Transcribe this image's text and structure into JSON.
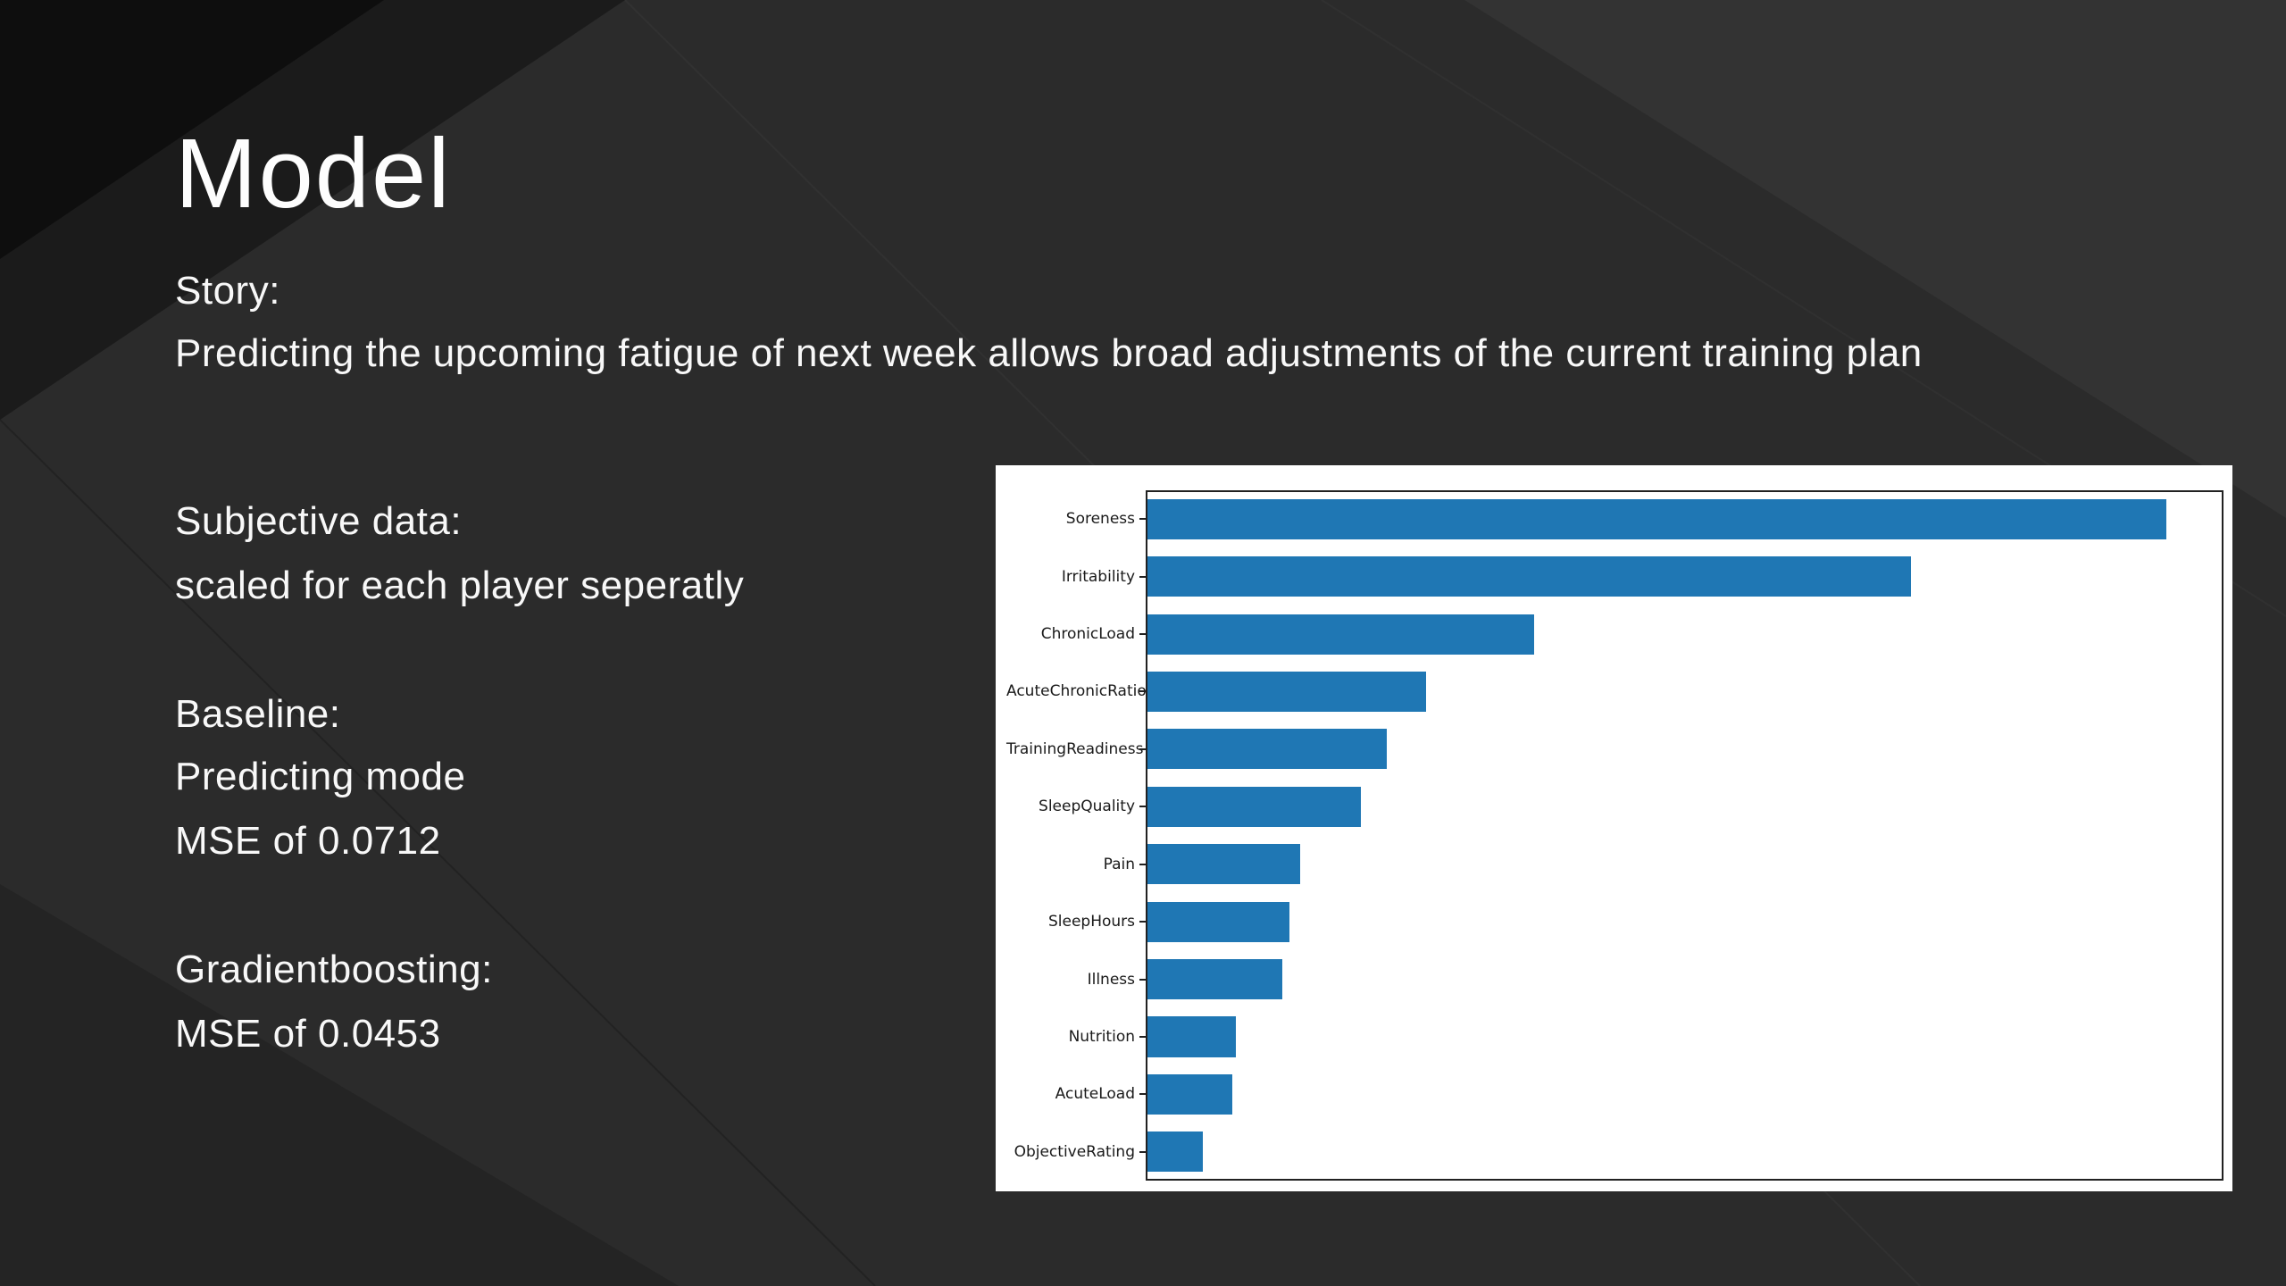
{
  "slide": {
    "title": "Model",
    "story_label": "Story:",
    "story_text": "Predicting the upcoming fatigue of next week allows broad adjustments of the current training plan",
    "subjective_label": "Subjective data:",
    "subjective_text": "scaled for each player seperatly",
    "baseline_label": "Baseline:",
    "baseline_line1": "Predicting mode",
    "baseline_line2": "MSE of 0.0712",
    "gradientboosting_label": "Gradientboosting:",
    "gradientboosting_line1": "MSE of 0.0453"
  },
  "colors": {
    "slide_background": "#2b2b2b",
    "facet_dark": "#161616",
    "facet_darker": "#0d0d0d",
    "facet_light": "#343434",
    "text": "#f8f8f8",
    "chart_background": "#ffffff",
    "bar_color": "#1f77b4",
    "axes_color": "#212121"
  },
  "chart_data": {
    "type": "bar",
    "orientation": "horizontal",
    "title": "",
    "xlabel": "",
    "ylabel": "",
    "legend": null,
    "grid": false,
    "xlim": [
      0,
      0.3
    ],
    "categories": [
      "Soreness",
      "Irritability",
      "ChronicLoad",
      "AcuteChronicRatio",
      "TrainingReadiness",
      "SleepQuality",
      "Pain",
      "SleepHours",
      "Illness",
      "Nutrition",
      "AcuteLoad",
      "ObjectiveRating"
    ],
    "values": [
      0.284,
      0.213,
      0.108,
      0.078,
      0.067,
      0.06,
      0.043,
      0.04,
      0.038,
      0.025,
      0.024,
      0.016
    ],
    "bar_color": "#1f77b4",
    "background": "#ffffff"
  }
}
